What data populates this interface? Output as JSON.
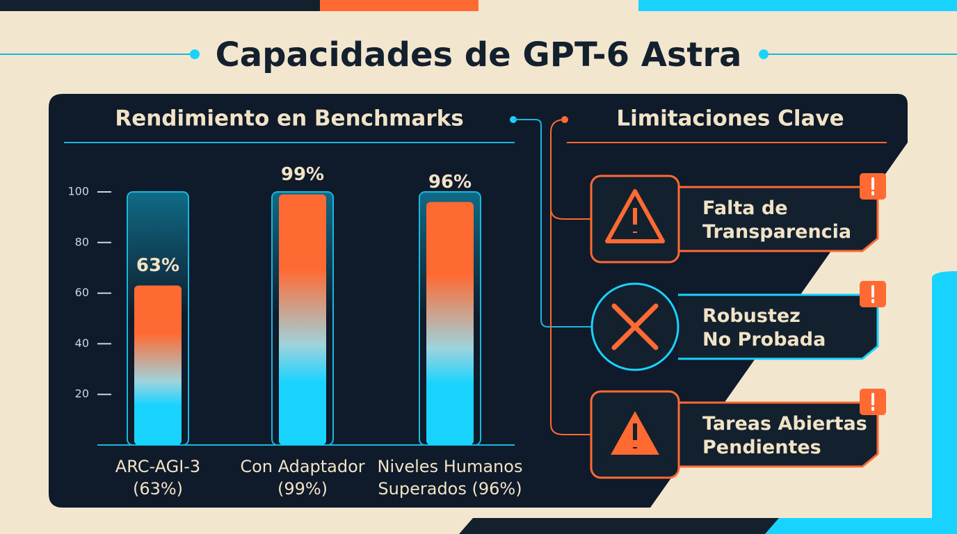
{
  "title": "Capacidades de GPT-6 Astra",
  "chart_data": {
    "type": "bar",
    "title": "Rendimiento en Benchmarks",
    "categories": [
      "ARC-AGI-3\n(63%)",
      "Con Adaptador\n(99%)",
      "Niveles Humanos\nSuperados (96%)"
    ],
    "values": [
      63,
      99,
      96
    ],
    "value_labels": [
      "63%",
      "99%",
      "96%"
    ],
    "ylim": [
      0,
      100
    ],
    "yticks": [
      20,
      40,
      60,
      80,
      100
    ],
    "colors": [
      "#ff6a33",
      "#19d3ff"
    ]
  },
  "limitations": {
    "title": "Limitaciones Clave",
    "items": [
      {
        "label": "Falta de\nTransparencia",
        "color": "#ff6a33"
      },
      {
        "label": "Robustez\nNo Probada",
        "color": "#19d3ff"
      },
      {
        "label": "Tareas Abiertas\nPendientes",
        "color": "#ff6a33"
      }
    ]
  }
}
